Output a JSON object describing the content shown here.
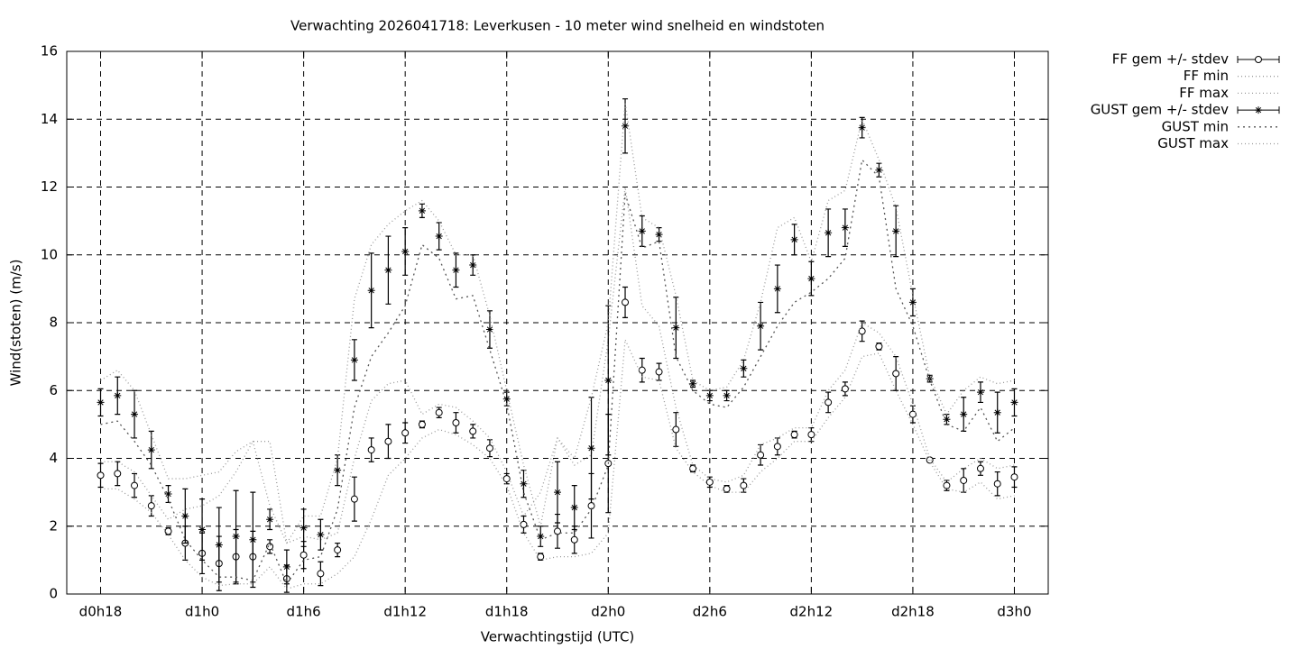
{
  "chart_data": {
    "type": "line",
    "title": "Verwachting 2026041718: Leverkusen - 10 meter wind snelheid en windstoten",
    "x_label": "Verwachtingstijd (UTC)",
    "y_label": "Wind(stoten) (m/s)",
    "x": [
      18,
      19,
      20,
      21,
      22,
      23,
      24,
      25,
      26,
      27,
      28,
      29,
      30,
      31,
      32,
      33,
      34,
      35,
      36,
      37,
      38,
      39,
      40,
      41,
      42,
      43,
      44,
      45,
      46,
      47,
      48,
      49,
      50,
      51,
      52,
      53,
      54,
      55,
      56,
      57,
      58,
      59,
      60,
      61,
      62,
      63,
      64,
      65,
      66,
      67,
      68,
      69,
      70,
      71,
      72
    ],
    "xlim": [
      16,
      74
    ],
    "xticks": [
      {
        "value": 18,
        "label": "d0h18"
      },
      {
        "value": 24,
        "label": "d1h0"
      },
      {
        "value": 30,
        "label": "d1h6"
      },
      {
        "value": 36,
        "label": "d1h12"
      },
      {
        "value": 42,
        "label": "d1h18"
      },
      {
        "value": 48,
        "label": "d2h0"
      },
      {
        "value": 54,
        "label": "d2h6"
      },
      {
        "value": 60,
        "label": "d2h12"
      },
      {
        "value": 66,
        "label": "d2h18"
      },
      {
        "value": 72,
        "label": "d3h0"
      }
    ],
    "ylim": [
      0,
      16
    ],
    "yticks": [
      0,
      2,
      4,
      6,
      8,
      10,
      12,
      14,
      16
    ],
    "grid": true,
    "legend": "outside-right",
    "series": [
      {
        "name": "FF gem +/- stdev",
        "color": "#000000",
        "style": "errorbars",
        "marker": "circle",
        "values": [
          3.5,
          3.55,
          3.2,
          2.6,
          1.85,
          1.5,
          1.2,
          0.9,
          1.1,
          1.1,
          1.4,
          0.45,
          1.15,
          0.6,
          1.3,
          2.8,
          4.25,
          4.5,
          4.75,
          5.0,
          5.35,
          5.05,
          4.8,
          4.3,
          3.4,
          2.05,
          1.1,
          1.85,
          1.6,
          2.6,
          3.85,
          8.6,
          6.6,
          6.55,
          4.85,
          3.7,
          3.3,
          3.1,
          3.2,
          4.1,
          4.35,
          4.7,
          4.7,
          5.65,
          6.05,
          7.75,
          7.3,
          6.5,
          5.3,
          3.95,
          3.2,
          3.35,
          3.7,
          3.25,
          3.45
        ],
        "errors": [
          0.35,
          0.35,
          0.35,
          0.3,
          0.1,
          0.5,
          0.6,
          0.8,
          0.8,
          0.75,
          0.2,
          0.4,
          0.4,
          0.35,
          0.2,
          0.65,
          0.35,
          0.5,
          0.3,
          0.1,
          0.15,
          0.3,
          0.2,
          0.25,
          0.15,
          0.25,
          0.1,
          0.5,
          0.4,
          0.95,
          1.45,
          0.45,
          0.35,
          0.25,
          0.5,
          0.1,
          0.15,
          0.1,
          0.2,
          0.3,
          0.25,
          0.1,
          0.2,
          0.3,
          0.2,
          0.3,
          0.1,
          0.5,
          0.25,
          0.05,
          0.15,
          0.35,
          0.2,
          0.35,
          0.3
        ]
      },
      {
        "name": "FF min",
        "color": "#999999",
        "style": "dotted",
        "values": [
          3.1,
          3.1,
          2.8,
          2.4,
          1.75,
          1.0,
          0.5,
          0.25,
          0.3,
          0.3,
          0.8,
          0.15,
          0.3,
          0.3,
          0.6,
          1.1,
          2.2,
          3.5,
          4.0,
          4.6,
          4.85,
          4.7,
          4.4,
          4.0,
          3.2,
          1.8,
          1.0,
          1.1,
          1.1,
          1.2,
          1.8,
          7.5,
          6.4,
          6.3,
          4.3,
          3.6,
          3.2,
          3.0,
          3.0,
          3.6,
          4.0,
          4.5,
          4.5,
          5.2,
          5.8,
          7.0,
          7.1,
          6.0,
          5.0,
          3.9,
          3.1,
          3.0,
          3.3,
          2.8,
          2.9
        ]
      },
      {
        "name": "FF max",
        "color": "#999999",
        "style": "dotted",
        "values": [
          3.9,
          3.9,
          3.6,
          2.9,
          2.2,
          2.5,
          2.6,
          2.9,
          3.6,
          4.5,
          4.5,
          1.5,
          1.7,
          1.6,
          1.8,
          4.0,
          5.7,
          6.2,
          6.3,
          5.3,
          5.6,
          5.5,
          5.1,
          4.6,
          3.6,
          2.3,
          3.0,
          4.6,
          3.8,
          4.1,
          7.5,
          12.0,
          8.5,
          7.9,
          5.5,
          3.8,
          3.4,
          3.3,
          3.5,
          4.4,
          4.6,
          4.9,
          4.9,
          6.0,
          6.6,
          8.0,
          7.7,
          7.0,
          5.6,
          4.0,
          3.3,
          3.7,
          4.0,
          3.7,
          3.8
        ]
      },
      {
        "name": "GUST gem +/- stdev",
        "color": "#000000",
        "style": "errorbars",
        "marker": "star",
        "values": [
          5.65,
          5.85,
          5.3,
          4.25,
          2.95,
          2.3,
          1.9,
          1.45,
          1.7,
          1.6,
          2.2,
          0.8,
          1.95,
          1.75,
          3.65,
          6.9,
          8.95,
          9.55,
          10.1,
          11.3,
          10.55,
          9.55,
          9.7,
          7.8,
          5.75,
          3.25,
          1.7,
          3.0,
          2.55,
          4.3,
          6.3,
          13.8,
          10.7,
          10.6,
          7.85,
          6.2,
          5.85,
          5.85,
          6.65,
          7.9,
          9.0,
          10.45,
          9.3,
          10.65,
          10.8,
          13.75,
          12.5,
          10.7,
          8.6,
          6.35,
          5.15,
          5.3,
          5.95,
          5.35,
          5.65
        ],
        "errors": [
          0.4,
          0.55,
          0.7,
          0.55,
          0.25,
          0.8,
          0.9,
          1.1,
          1.35,
          1.4,
          0.3,
          0.5,
          0.55,
          0.45,
          0.45,
          0.6,
          1.1,
          1.0,
          0.7,
          0.2,
          0.4,
          0.5,
          0.3,
          0.55,
          0.2,
          0.4,
          0.3,
          0.9,
          0.65,
          1.5,
          2.2,
          0.8,
          0.45,
          0.2,
          0.9,
          0.1,
          0.15,
          0.15,
          0.25,
          0.7,
          0.7,
          0.45,
          0.5,
          0.7,
          0.55,
          0.3,
          0.2,
          0.75,
          0.4,
          0.1,
          0.15,
          0.5,
          0.3,
          0.6,
          0.4
        ]
      },
      {
        "name": "GUST min",
        "color": "#555555",
        "style": "dense-dotted",
        "values": [
          5.0,
          5.1,
          4.5,
          3.8,
          2.8,
          1.6,
          1.0,
          0.5,
          0.5,
          0.4,
          1.5,
          0.3,
          1.0,
          1.1,
          2.5,
          5.5,
          7.0,
          7.7,
          8.5,
          10.3,
          9.9,
          8.7,
          8.8,
          7.2,
          5.6,
          3.0,
          1.6,
          1.8,
          1.8,
          2.5,
          3.8,
          11.8,
          10.2,
          10.4,
          7.0,
          6.0,
          5.6,
          5.5,
          6.1,
          7.0,
          7.9,
          8.6,
          8.9,
          9.3,
          9.9,
          12.8,
          12.3,
          9.0,
          7.9,
          6.3,
          5.0,
          4.8,
          5.5,
          4.5,
          4.9
        ]
      },
      {
        "name": "GUST max",
        "color": "#999999",
        "style": "dotted",
        "values": [
          6.3,
          6.6,
          6.0,
          4.7,
          3.4,
          3.4,
          3.5,
          3.6,
          4.2,
          4.5,
          2.6,
          1.5,
          2.3,
          2.3,
          4.0,
          8.7,
          10.3,
          10.9,
          11.3,
          11.6,
          11.0,
          10.0,
          10.0,
          8.2,
          6.0,
          3.8,
          2.0,
          4.6,
          4.0,
          5.8,
          8.0,
          14.5,
          11.1,
          10.8,
          8.8,
          6.3,
          6.0,
          6.1,
          6.9,
          8.6,
          10.8,
          11.1,
          9.8,
          11.6,
          11.9,
          14.0,
          12.8,
          11.4,
          8.8,
          6.4,
          5.3,
          6.0,
          6.4,
          6.2,
          6.3
        ]
      }
    ]
  }
}
